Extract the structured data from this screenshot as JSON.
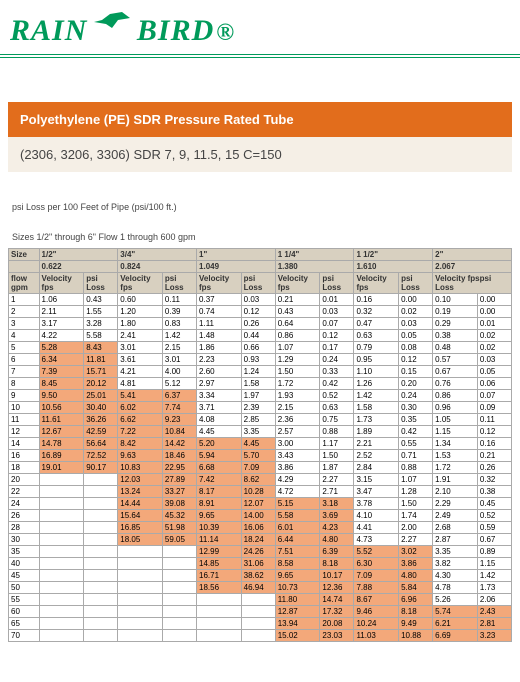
{
  "logo": {
    "rain": "RAIN",
    "bird": "BIRD"
  },
  "title": "Polyethylene (PE) SDR Pressure Rated Tube",
  "subtitle": "(2306, 3206, 3306) SDR 7, 9, 11.5, 15 C=150",
  "note1": "psi Loss per 100 Feet of Pipe (psi/100 ft.)",
  "note2": "Sizes 1/2\" through 6\" Flow 1 through 600 gpm",
  "head": {
    "size": "Size",
    "flow": "flow gpm",
    "v": "Velocity fps",
    "l": "psi Loss",
    "vl": "Velocity fpspsi Loss"
  },
  "pipes": [
    {
      "label": "1/2\"",
      "id": "0.622"
    },
    {
      "label": "3/4\"",
      "id": "0.824"
    },
    {
      "label": "1\"",
      "id": "1.049"
    },
    {
      "label": "1 1/4\"",
      "id": "1.380"
    },
    {
      "label": "1 1/2\"",
      "id": "1.610"
    },
    {
      "label": "2\"",
      "id": "2.067"
    }
  ],
  "rows": [
    {
      "g": "1",
      "c": [
        [
          "1.06",
          "0.43",
          0
        ],
        [
          "0.60",
          "0.11",
          0
        ],
        [
          "0.37",
          "0.03",
          0
        ],
        [
          "0.21",
          "0.01",
          0
        ],
        [
          "0.16",
          "0.00",
          0
        ],
        [
          "0.10",
          "0.00",
          0
        ]
      ]
    },
    {
      "g": "2",
      "c": [
        [
          "2.11",
          "1.55",
          0
        ],
        [
          "1.20",
          "0.39",
          0
        ],
        [
          "0.74",
          "0.12",
          0
        ],
        [
          "0.43",
          "0.03",
          0
        ],
        [
          "0.32",
          "0.02",
          0
        ],
        [
          "0.19",
          "0.00",
          0
        ]
      ]
    },
    {
      "g": "3",
      "c": [
        [
          "3.17",
          "3.28",
          0
        ],
        [
          "1.80",
          "0.83",
          0
        ],
        [
          "1.11",
          "0.26",
          0
        ],
        [
          "0.64",
          "0.07",
          0
        ],
        [
          "0.47",
          "0.03",
          0
        ],
        [
          "0.29",
          "0.01",
          0
        ]
      ]
    },
    {
      "g": "4",
      "c": [
        [
          "4.22",
          "5.58",
          0
        ],
        [
          "2.41",
          "1.42",
          0
        ],
        [
          "1.48",
          "0.44",
          0
        ],
        [
          "0.86",
          "0.12",
          0
        ],
        [
          "0.63",
          "0.05",
          0
        ],
        [
          "0.38",
          "0.02",
          0
        ]
      ]
    },
    {
      "g": "5",
      "c": [
        [
          "5.28",
          "8.43",
          1
        ],
        [
          "3.01",
          "2.15",
          0
        ],
        [
          "1.86",
          "0.66",
          0
        ],
        [
          "1.07",
          "0.17",
          0
        ],
        [
          "0.79",
          "0.08",
          0
        ],
        [
          "0.48",
          "0.02",
          0
        ]
      ]
    },
    {
      "g": "6",
      "c": [
        [
          "6.34",
          "11.81",
          1
        ],
        [
          "3.61",
          "3.01",
          0
        ],
        [
          "2.23",
          "0.93",
          0
        ],
        [
          "1.29",
          "0.24",
          0
        ],
        [
          "0.95",
          "0.12",
          0
        ],
        [
          "0.57",
          "0.03",
          0
        ]
      ]
    },
    {
      "g": "7",
      "c": [
        [
          "7.39",
          "15.71",
          1
        ],
        [
          "4.21",
          "4.00",
          0
        ],
        [
          "2.60",
          "1.24",
          0
        ],
        [
          "1.50",
          "0.33",
          0
        ],
        [
          "1.10",
          "0.15",
          0
        ],
        [
          "0.67",
          "0.05",
          0
        ]
      ]
    },
    {
      "g": "8",
      "c": [
        [
          "8.45",
          "20.12",
          1
        ],
        [
          "4.81",
          "5.12",
          0
        ],
        [
          "2.97",
          "1.58",
          0
        ],
        [
          "1.72",
          "0.42",
          0
        ],
        [
          "1.26",
          "0.20",
          0
        ],
        [
          "0.76",
          "0.06",
          0
        ]
      ]
    },
    {
      "g": "9",
      "c": [
        [
          "9.50",
          "25.01",
          1
        ],
        [
          "5.41",
          "6.37",
          1
        ],
        [
          "3.34",
          "1.97",
          0
        ],
        [
          "1.93",
          "0.52",
          0
        ],
        [
          "1.42",
          "0.24",
          0
        ],
        [
          "0.86",
          "0.07",
          0
        ]
      ]
    },
    {
      "g": "10",
      "c": [
        [
          "10.56",
          "30.40",
          1
        ],
        [
          "6.02",
          "7.74",
          1
        ],
        [
          "3.71",
          "2.39",
          0
        ],
        [
          "2.15",
          "0.63",
          0
        ],
        [
          "1.58",
          "0.30",
          0
        ],
        [
          "0.96",
          "0.09",
          0
        ]
      ]
    },
    {
      "g": "11",
      "c": [
        [
          "11.61",
          "36.26",
          1
        ],
        [
          "6.62",
          "9.23",
          1
        ],
        [
          "4.08",
          "2.85",
          0
        ],
        [
          "2.36",
          "0.75",
          0
        ],
        [
          "1.73",
          "0.35",
          0
        ],
        [
          "1.05",
          "0.11",
          0
        ]
      ]
    },
    {
      "g": "12",
      "c": [
        [
          "12.67",
          "42.59",
          1
        ],
        [
          "7.22",
          "10.84",
          1
        ],
        [
          "4.45",
          "3.35",
          0
        ],
        [
          "2.57",
          "0.88",
          0
        ],
        [
          "1.89",
          "0.42",
          0
        ],
        [
          "1.15",
          "0.12",
          0
        ]
      ]
    },
    {
      "g": "14",
      "c": [
        [
          "14.78",
          "56.64",
          1
        ],
        [
          "8.42",
          "14.42",
          1
        ],
        [
          "5.20",
          "4.45",
          1
        ],
        [
          "3.00",
          "1.17",
          0
        ],
        [
          "2.21",
          "0.55",
          0
        ],
        [
          "1.34",
          "0.16",
          0
        ]
      ]
    },
    {
      "g": "16",
      "c": [
        [
          "16.89",
          "72.52",
          1
        ],
        [
          "9.63",
          "18.46",
          1
        ],
        [
          "5.94",
          "5.70",
          1
        ],
        [
          "3.43",
          "1.50",
          0
        ],
        [
          "2.52",
          "0.71",
          0
        ],
        [
          "1.53",
          "0.21",
          0
        ]
      ]
    },
    {
      "g": "18",
      "c": [
        [
          "19.01",
          "90.17",
          1
        ],
        [
          "10.83",
          "22.95",
          1
        ],
        [
          "6.68",
          "7.09",
          1
        ],
        [
          "3.86",
          "1.87",
          0
        ],
        [
          "2.84",
          "0.88",
          0
        ],
        [
          "1.72",
          "0.26",
          0
        ]
      ]
    },
    {
      "g": "20",
      "c": [
        [
          "",
          "",
          0
        ],
        [
          "12.03",
          "27.89",
          1
        ],
        [
          "7.42",
          "8.62",
          1
        ],
        [
          "4.29",
          "2.27",
          0
        ],
        [
          "3.15",
          "1.07",
          0
        ],
        [
          "1.91",
          "0.32",
          0
        ]
      ]
    },
    {
      "g": "22",
      "c": [
        [
          "",
          "",
          0
        ],
        [
          "13.24",
          "33.27",
          1
        ],
        [
          "8.17",
          "10.28",
          1
        ],
        [
          "4.72",
          "2.71",
          0
        ],
        [
          "3.47",
          "1.28",
          0
        ],
        [
          "2.10",
          "0.38",
          0
        ]
      ]
    },
    {
      "g": "24",
      "c": [
        [
          "",
          "",
          0
        ],
        [
          "14.44",
          "39.08",
          1
        ],
        [
          "8.91",
          "12.07",
          1
        ],
        [
          "5.15",
          "3.18",
          1
        ],
        [
          "3.78",
          "1.50",
          0
        ],
        [
          "2.29",
          "0.45",
          0
        ]
      ]
    },
    {
      "g": "26",
      "c": [
        [
          "",
          "",
          0
        ],
        [
          "15.64",
          "45.32",
          1
        ],
        [
          "9.65",
          "14.00",
          1
        ],
        [
          "5.58",
          "3.69",
          1
        ],
        [
          "4.10",
          "1.74",
          0
        ],
        [
          "2.49",
          "0.52",
          0
        ]
      ]
    },
    {
      "g": "28",
      "c": [
        [
          "",
          "",
          0
        ],
        [
          "16.85",
          "51.98",
          1
        ],
        [
          "10.39",
          "16.06",
          1
        ],
        [
          "6.01",
          "4.23",
          1
        ],
        [
          "4.41",
          "2.00",
          0
        ],
        [
          "2.68",
          "0.59",
          0
        ]
      ]
    },
    {
      "g": "30",
      "c": [
        [
          "",
          "",
          0
        ],
        [
          "18.05",
          "59.05",
          1
        ],
        [
          "11.14",
          "18.24",
          1
        ],
        [
          "6.44",
          "4.80",
          1
        ],
        [
          "4.73",
          "2.27",
          0
        ],
        [
          "2.87",
          "0.67",
          0
        ]
      ]
    },
    {
      "g": "35",
      "c": [
        [
          "",
          "",
          0
        ],
        [
          "",
          "",
          0
        ],
        [
          "12.99",
          "24.26",
          1
        ],
        [
          "7.51",
          "6.39",
          1
        ],
        [
          "5.52",
          "3.02",
          1
        ],
        [
          "3.35",
          "0.89",
          0
        ]
      ]
    },
    {
      "g": "40",
      "c": [
        [
          "",
          "",
          0
        ],
        [
          "",
          "",
          0
        ],
        [
          "14.85",
          "31.06",
          1
        ],
        [
          "8.58",
          "8.18",
          1
        ],
        [
          "6.30",
          "3.86",
          1
        ],
        [
          "3.82",
          "1.15",
          0
        ]
      ]
    },
    {
      "g": "45",
      "c": [
        [
          "",
          "",
          0
        ],
        [
          "",
          "",
          0
        ],
        [
          "16.71",
          "38.62",
          1
        ],
        [
          "9.65",
          "10.17",
          1
        ],
        [
          "7.09",
          "4.80",
          1
        ],
        [
          "4.30",
          "1.42",
          0
        ]
      ]
    },
    {
      "g": "50",
      "c": [
        [
          "",
          "",
          0
        ],
        [
          "",
          "",
          0
        ],
        [
          "18.56",
          "46.94",
          1
        ],
        [
          "10.73",
          "12.36",
          1
        ],
        [
          "7.88",
          "5.84",
          1
        ],
        [
          "4.78",
          "1.73",
          0
        ]
      ]
    },
    {
      "g": "55",
      "c": [
        [
          "",
          "",
          0
        ],
        [
          "",
          "",
          0
        ],
        [
          "",
          "",
          0
        ],
        [
          "11.80",
          "14.74",
          1
        ],
        [
          "8.67",
          "6.96",
          1
        ],
        [
          "5.26",
          "2.06",
          0
        ]
      ]
    },
    {
      "g": "60",
      "c": [
        [
          "",
          "",
          0
        ],
        [
          "",
          "",
          0
        ],
        [
          "",
          "",
          0
        ],
        [
          "12.87",
          "17.32",
          1
        ],
        [
          "9.46",
          "8.18",
          1
        ],
        [
          "5.74",
          "2.43",
          1
        ]
      ]
    },
    {
      "g": "65",
      "c": [
        [
          "",
          "",
          0
        ],
        [
          "",
          "",
          0
        ],
        [
          "",
          "",
          0
        ],
        [
          "13.94",
          "20.08",
          1
        ],
        [
          "10.24",
          "9.49",
          1
        ],
        [
          "6.21",
          "2.81",
          1
        ]
      ]
    },
    {
      "g": "70",
      "c": [
        [
          "",
          "",
          0
        ],
        [
          "",
          "",
          0
        ],
        [
          "",
          "",
          0
        ],
        [
          "15.02",
          "23.03",
          1
        ],
        [
          "11.03",
          "10.88",
          1
        ],
        [
          "6.69",
          "3.23",
          1
        ]
      ]
    }
  ]
}
